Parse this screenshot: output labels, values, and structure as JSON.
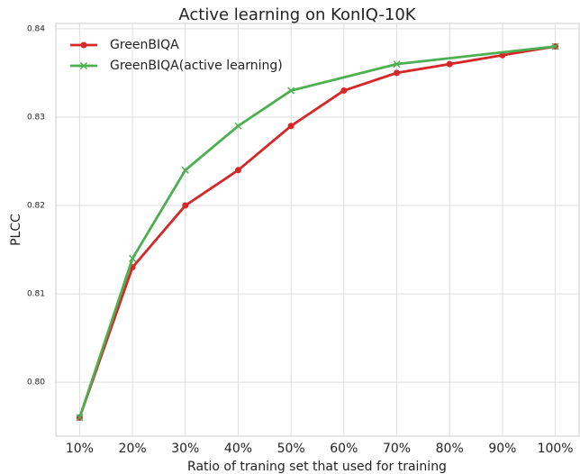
{
  "chart_data": {
    "type": "line",
    "title": "Active learning on KonIQ-10K",
    "xlabel": "Ratio of traning set that used for training",
    "ylabel": "PLCC",
    "xlim": [
      5.5,
      104.5
    ],
    "xticks": [
      {
        "value": 10,
        "label": "10%"
      },
      {
        "value": 20,
        "label": "20%"
      },
      {
        "value": 30,
        "label": "30%"
      },
      {
        "value": 40,
        "label": "40%"
      },
      {
        "value": 50,
        "label": "50%"
      },
      {
        "value": 60,
        "label": "60%"
      },
      {
        "value": 70,
        "label": "70%"
      },
      {
        "value": 80,
        "label": "80%"
      },
      {
        "value": 90,
        "label": "90%"
      },
      {
        "value": 100,
        "label": "100%"
      }
    ],
    "ylim": [
      0.7939,
      0.8406
    ],
    "yticks": [
      {
        "value": 0.8,
        "label": "0.80"
      },
      0.81,
      0.82,
      0.83,
      0.84
    ],
    "grid": true,
    "legend": "upper left",
    "series": [
      {
        "name": "GreenBIQA",
        "color": "#d62728",
        "marker": "o",
        "x": [
          10,
          20,
          30,
          40,
          50,
          60,
          70,
          80,
          90,
          100
        ],
        "values": [
          0.796,
          0.813,
          0.82,
          0.824,
          0.829,
          0.833,
          0.835,
          0.836,
          0.837,
          0.838
        ]
      },
      {
        "name": "GreenBIQA(active learning)",
        "color": "#4caf50",
        "marker": "x",
        "x": [
          10,
          20,
          30,
          40,
          50,
          70,
          100
        ],
        "values": [
          0.796,
          0.814,
          0.824,
          0.829,
          0.833,
          0.836,
          0.838
        ]
      }
    ]
  }
}
